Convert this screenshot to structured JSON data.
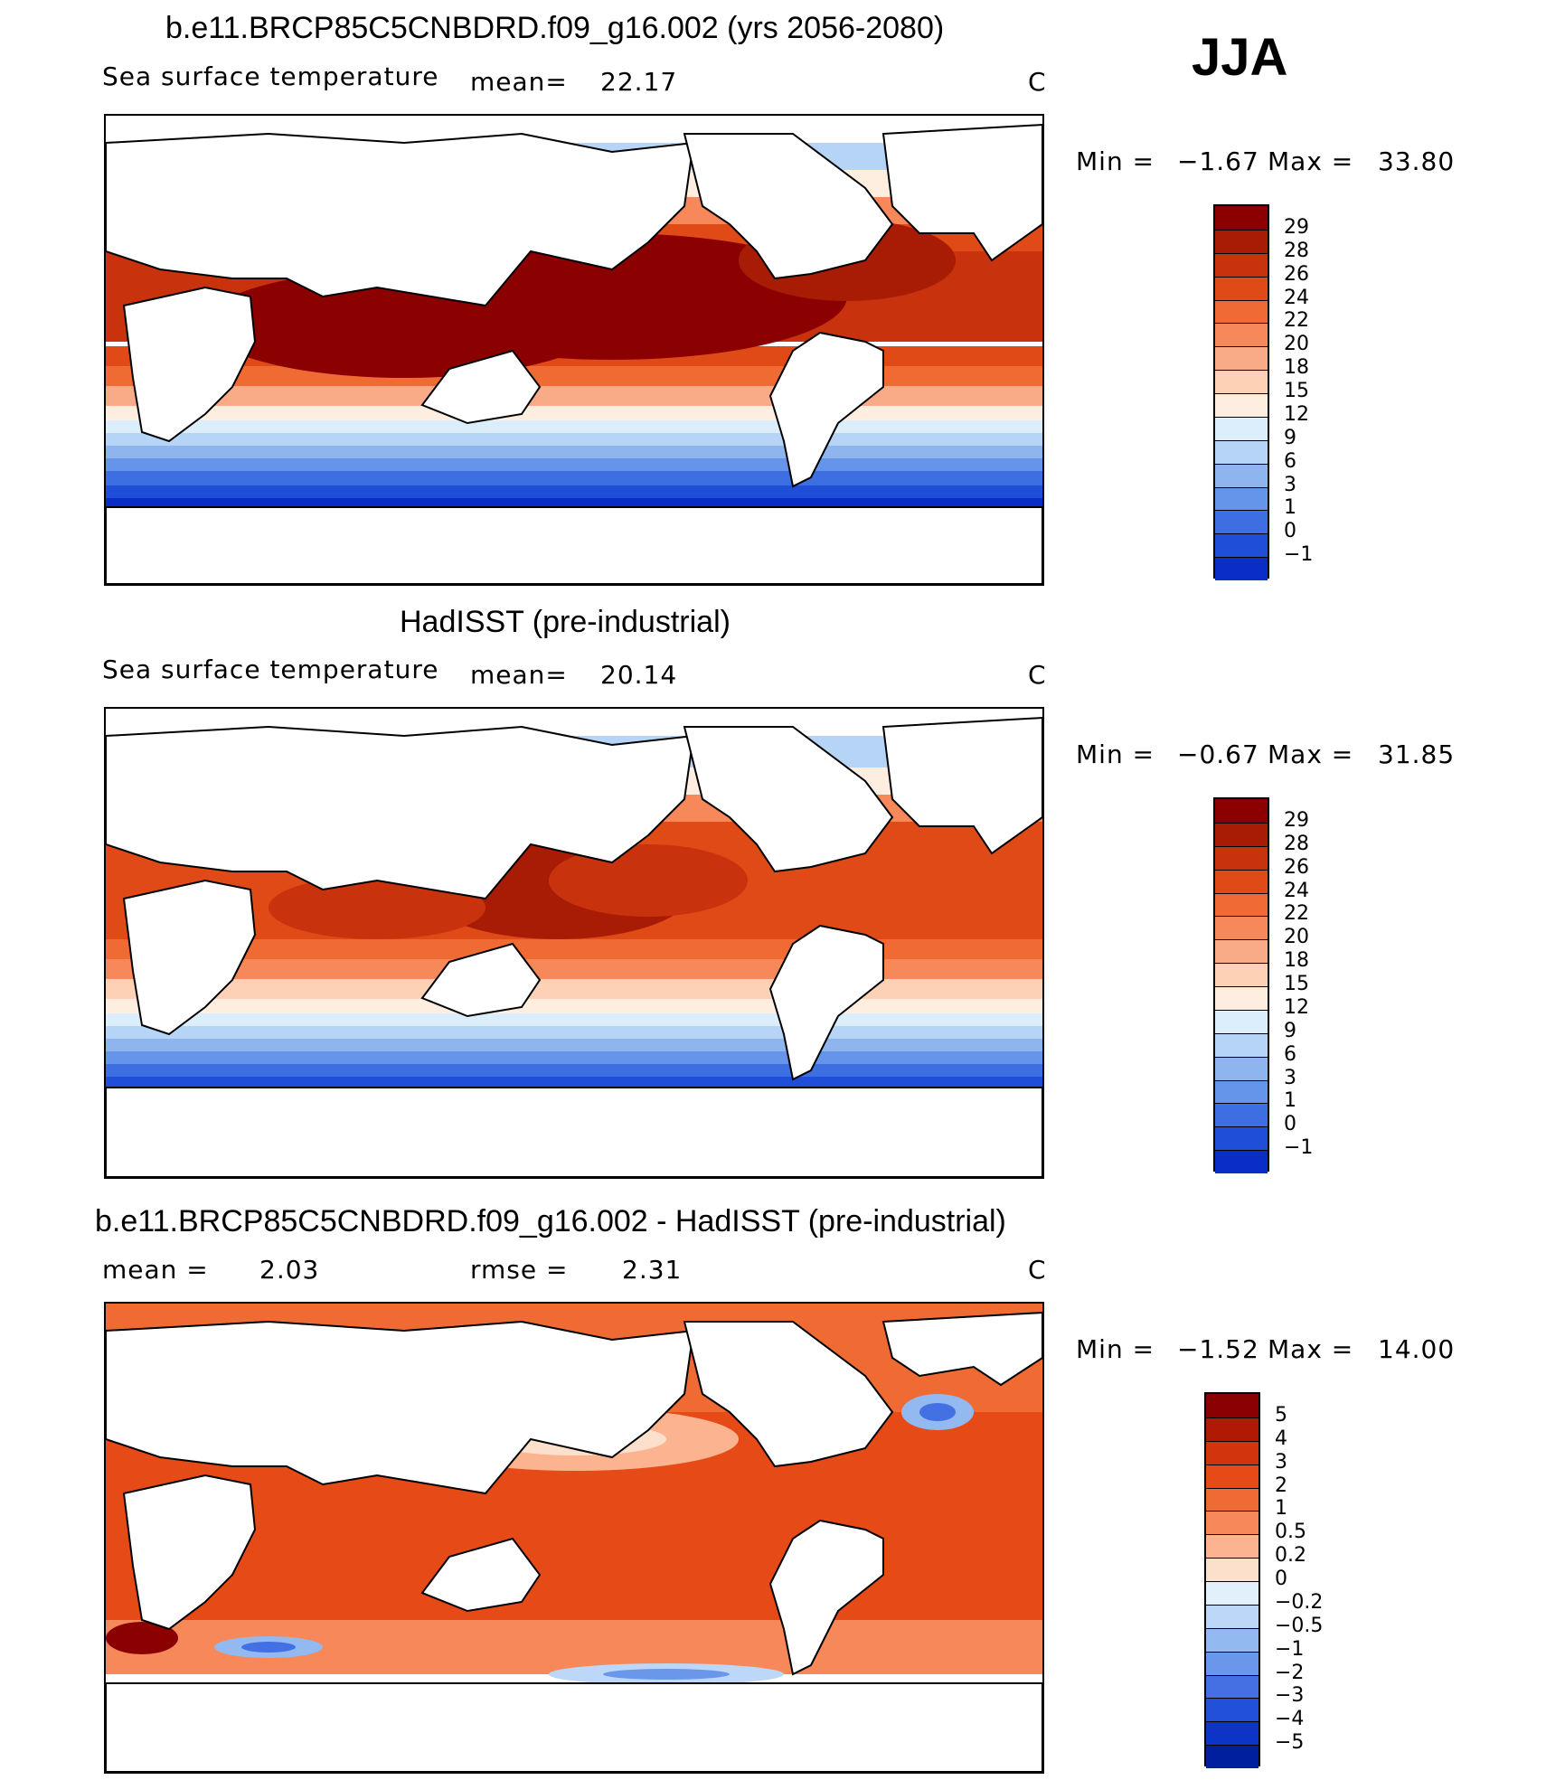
{
  "season": "JJA",
  "panels": [
    {
      "title": "b.e11.BRCP85C5CNBDRD.f09_g16.002 (yrs 2056-2080)",
      "left_label": "Sea surface temperature",
      "mean_label": "mean=",
      "mean_value": "22.17",
      "rmse_label": "",
      "rmse_value": "",
      "units": "C",
      "min_label": "Min  =",
      "min_value": "−1.67",
      "max_label": "Max  =",
      "max_value": "33.80",
      "colorbar_labels": [
        "29",
        "28",
        "26",
        "24",
        "22",
        "20",
        "18",
        "15",
        "12",
        "9",
        "6",
        "3",
        "1",
        "0",
        "−1"
      ]
    },
    {
      "title": "HadISST (pre-industrial)",
      "left_label": "Sea surface temperature",
      "mean_label": "mean=",
      "mean_value": "20.14",
      "rmse_label": "",
      "rmse_value": "",
      "units": "C",
      "min_label": "Min  =",
      "min_value": "−0.67",
      "max_label": "Max  =",
      "max_value": "31.85",
      "colorbar_labels": [
        "29",
        "28",
        "26",
        "24",
        "22",
        "20",
        "18",
        "15",
        "12",
        "9",
        "6",
        "3",
        "1",
        "0",
        "−1"
      ]
    },
    {
      "title": "b.e11.BRCP85C5CNBDRD.f09_g16.002 - HadISST (pre-industrial)",
      "left_label": "mean  =",
      "mean_label": "",
      "mean_value": "2.03",
      "rmse_label": "rmse  =",
      "rmse_value": "2.31",
      "units": "C",
      "min_label": "Min  =",
      "min_value": "−1.52",
      "max_label": "Max  =",
      "max_value": "14.00",
      "colorbar_labels": [
        "5",
        "4",
        "3",
        "2",
        "1",
        "0.5",
        "0.2",
        "0",
        "−0.2",
        "−0.5",
        "−1",
        "−2",
        "−3",
        "−4",
        "−5"
      ]
    }
  ],
  "colors": {
    "sst_palette": [
      "#8b0000",
      "#a81c06",
      "#c8320d",
      "#e04a17",
      "#f06a34",
      "#f7885a",
      "#f9ab87",
      "#fcd1b6",
      "#fdeee0",
      "#dceefc",
      "#b6d4f6",
      "#8fb5ef",
      "#6495ea",
      "#3d6fe3",
      "#1f4fd9",
      "#0a2cc7",
      "#001a99"
    ],
    "diff_palette": [
      "#8b0000",
      "#b01a04",
      "#d2340d",
      "#e64a17",
      "#f06a34",
      "#f7885a",
      "#fbb390",
      "#fde0cc",
      "#e2f0fc",
      "#bcd7f8",
      "#93b9f1",
      "#6a97ea",
      "#4370e2",
      "#2350d8",
      "#0d34c6",
      "#001f9e"
    ]
  }
}
